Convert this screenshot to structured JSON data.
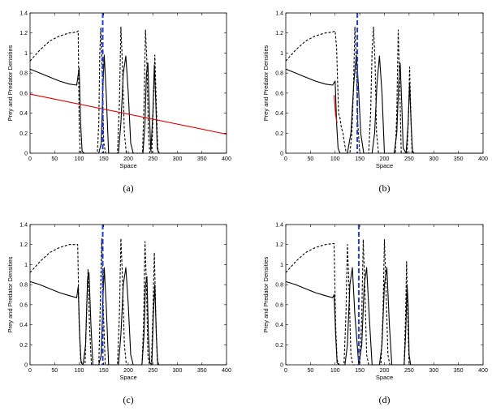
{
  "chart_data": [
    {
      "type": "line",
      "caption": "(a)",
      "xlabel": "Space",
      "ylabel": "Prey and Predator Densities",
      "xlim": [
        0,
        400
      ],
      "ylim": [
        0,
        1.4
      ],
      "xticks": [
        0,
        50,
        100,
        150,
        200,
        250,
        300,
        350,
        400
      ],
      "yticks": [
        0,
        0.2,
        0.4,
        0.6,
        0.8,
        1,
        1.2,
        1.4
      ],
      "grid": false,
      "marker_x": 148,
      "series": [
        {
          "style": "solid",
          "color": "#000000",
          "x": [
            0,
            20,
            40,
            60,
            80,
            95,
            100,
            103,
            106,
            110,
            140,
            145,
            148,
            151,
            155,
            160,
            180,
            185,
            190,
            195,
            200,
            205,
            210,
            230,
            234,
            237,
            240,
            243,
            246,
            250,
            253,
            256,
            259,
            262,
            266,
            400
          ],
          "y": [
            0.84,
            0.8,
            0.76,
            0.72,
            0.69,
            0.68,
            0.85,
            0.3,
            0.02,
            0,
            0,
            0.1,
            0.6,
            0.98,
            0.6,
            0,
            0,
            0.3,
            0.8,
            0.97,
            0.6,
            0.1,
            0,
            0,
            0.3,
            0.8,
            0.9,
            0.4,
            0.02,
            0.4,
            0.88,
            0.5,
            0.05,
            0,
            0,
            0
          ]
        },
        {
          "style": "dashed",
          "color": "#000000",
          "x": [
            0,
            20,
            40,
            60,
            80,
            95,
            98,
            100,
            102,
            105,
            137,
            140,
            142,
            144,
            147,
            150,
            154,
            157,
            178,
            182,
            185,
            188,
            192,
            196,
            229,
            232,
            235,
            238,
            241,
            244,
            248,
            251,
            254,
            257,
            260,
            263,
            400
          ],
          "y": [
            0.92,
            1.03,
            1.12,
            1.17,
            1.2,
            1.21,
            1.22,
            0.3,
            0.02,
            0,
            0,
            0.3,
            1,
            1.25,
            0.8,
            0.1,
            0,
            0,
            0,
            0.5,
            1.26,
            0.9,
            0.2,
            0,
            0,
            0.5,
            1.23,
            0.9,
            0.2,
            0,
            0,
            0.5,
            0.98,
            0.5,
            0.05,
            0,
            0
          ]
        },
        {
          "style": "solid",
          "color": "#e00000",
          "x": [
            0,
            400
          ],
          "y": [
            0.59,
            0.19
          ]
        }
      ]
    },
    {
      "type": "line",
      "caption": "(b)",
      "xlabel": "Space",
      "ylabel": "Prey and Predator Densities",
      "xlim": [
        0,
        400
      ],
      "ylim": [
        0,
        1.4
      ],
      "xticks": [
        0,
        50,
        100,
        150,
        200,
        250,
        300,
        350,
        400
      ],
      "yticks": [
        0,
        0.2,
        0.4,
        0.6,
        0.8,
        1,
        1.2,
        1.4
      ],
      "grid": false,
      "marker_x": 145,
      "series": [
        {
          "style": "solid",
          "color": "#000000",
          "x": [
            0,
            20,
            40,
            60,
            80,
            95,
            100,
            103,
            106,
            110,
            125,
            132,
            138,
            143,
            147,
            152,
            158,
            165,
            175,
            180,
            185,
            190,
            195,
            200,
            220,
            225,
            229,
            232,
            235,
            238,
            244,
            248,
            251,
            254,
            257,
            260,
            400
          ],
          "y": [
            0.84,
            0.8,
            0.76,
            0.72,
            0.69,
            0.68,
            0.72,
            0.3,
            0.05,
            0,
            0,
            0.2,
            0.7,
            0.98,
            0.7,
            0.2,
            0,
            0,
            0,
            0.2,
            0.7,
            0.97,
            0.6,
            0,
            0,
            0.2,
            0.7,
            0.9,
            0.5,
            0.05,
            0,
            0.3,
            0.7,
            0.3,
            0.02,
            0,
            0
          ]
        },
        {
          "style": "dashed",
          "color": "#000000",
          "x": [
            0,
            20,
            40,
            60,
            80,
            95,
            100,
            103,
            107,
            110,
            113,
            116,
            119,
            122,
            125,
            130,
            134,
            137,
            140,
            143,
            146,
            150,
            155,
            168,
            172,
            175,
            178,
            181,
            184,
            188,
            222,
            225,
            228,
            231,
            234,
            246,
            249,
            251,
            253,
            256,
            400
          ],
          "y": [
            0.92,
            1.03,
            1.12,
            1.17,
            1.2,
            1.21,
            1.22,
            1.05,
            0.4,
            0.35,
            0.25,
            0.2,
            0.1,
            0.02,
            0,
            0,
            0.2,
            0.6,
            1.26,
            0.9,
            0.3,
            0,
            0,
            0,
            0.4,
            1.02,
            1.26,
            0.9,
            0.2,
            0,
            0,
            0.4,
            1.23,
            0.7,
            0,
            0,
            0.4,
            0.86,
            0.5,
            0,
            0
          ]
        },
        {
          "style": "solid",
          "color": "#e00000",
          "x": [
            98,
            101,
            104
          ],
          "y": [
            0.58,
            0.38,
            0.3
          ]
        }
      ]
    },
    {
      "type": "line",
      "caption": "(c)",
      "xlabel": "Space",
      "ylabel": "Prey and Predator Densities",
      "xlim": [
        0,
        400
      ],
      "ylim": [
        0,
        1.4
      ],
      "xticks": [
        0,
        50,
        100,
        150,
        200,
        250,
        300,
        350,
        400
      ],
      "yticks": [
        0,
        0.2,
        0.4,
        0.6,
        0.8,
        1,
        1.2,
        1.4
      ],
      "grid": false,
      "marker_x": 148,
      "series": [
        {
          "style": "solid",
          "color": "#000000",
          "x": [
            0,
            20,
            40,
            60,
            80,
            95,
            98,
            101,
            104,
            108,
            113,
            117,
            120,
            124,
            128,
            140,
            145,
            148,
            151,
            155,
            160,
            180,
            185,
            190,
            195,
            200,
            205,
            210,
            228,
            232,
            235,
            238,
            241,
            244,
            248,
            251,
            254,
            257,
            260,
            400
          ],
          "y": [
            0.83,
            0.8,
            0.76,
            0.72,
            0.69,
            0.67,
            0.78,
            0.3,
            0.02,
            0,
            0.2,
            0.85,
            0.92,
            0.4,
            0,
            0,
            0.1,
            0.6,
            0.97,
            0.6,
            0,
            0,
            0.3,
            0.8,
            0.97,
            0.6,
            0.1,
            0,
            0,
            0.3,
            0.8,
            0.88,
            0.3,
            0.02,
            0,
            0.5,
            0.8,
            0.3,
            0,
            0
          ]
        },
        {
          "style": "dashed",
          "color": "#000000",
          "x": [
            0,
            20,
            40,
            60,
            80,
            94,
            97,
            100,
            103,
            107,
            112,
            115,
            118,
            121,
            125,
            140,
            143,
            146,
            149,
            153,
            157,
            178,
            182,
            185,
            188,
            192,
            196,
            228,
            231,
            234,
            237,
            240,
            243,
            247,
            250,
            253,
            256,
            259,
            262,
            400
          ],
          "y": [
            0.92,
            1.03,
            1.12,
            1.17,
            1.2,
            1.2,
            1.2,
            0.4,
            0.05,
            0,
            0,
            0.5,
            0.95,
            0.4,
            0,
            0,
            0.6,
            1.26,
            0.6,
            0,
            0,
            0,
            0.5,
            1.26,
            0.9,
            0.2,
            0,
            0,
            0.4,
            1.23,
            0.8,
            0.1,
            0,
            0,
            0.5,
            1.12,
            0.5,
            0.05,
            0,
            0
          ]
        }
      ]
    },
    {
      "type": "line",
      "caption": "(d)",
      "xlabel": "Space",
      "ylabel": "Prey and Predator Densities",
      "xlim": [
        0,
        400
      ],
      "ylim": [
        0,
        1.4
      ],
      "xticks": [
        0,
        50,
        100,
        150,
        200,
        250,
        300,
        350,
        400
      ],
      "yticks": [
        0,
        0.2,
        0.4,
        0.6,
        0.8,
        1,
        1.2,
        1.4
      ],
      "grid": false,
      "marker_x": 148,
      "series": [
        {
          "style": "solid",
          "color": "#000000",
          "x": [
            0,
            20,
            40,
            60,
            80,
            95,
            98,
            101,
            104,
            108,
            120,
            125,
            130,
            135,
            140,
            148,
            154,
            159,
            164,
            169,
            175,
            190,
            195,
            200,
            205,
            210,
            215,
            240,
            243,
            246,
            248,
            250,
            253,
            400
          ],
          "y": [
            0.83,
            0.8,
            0.76,
            0.72,
            0.69,
            0.67,
            0.7,
            0.3,
            0.02,
            0,
            0,
            0.2,
            0.8,
            0.97,
            0.5,
            0,
            0.2,
            0.8,
            0.97,
            0.5,
            0,
            0,
            0.2,
            0.8,
            0.97,
            0.4,
            0,
            0,
            0.3,
            0.8,
            0.6,
            0.1,
            0,
            0
          ]
        },
        {
          "style": "dashed",
          "color": "#000000",
          "x": [
            0,
            20,
            40,
            60,
            80,
            95,
            98,
            101,
            104,
            108,
            118,
            122,
            125,
            128,
            132,
            136,
            150,
            154,
            157,
            160,
            164,
            168,
            193,
            197,
            200,
            203,
            207,
            211,
            240,
            243,
            245,
            247,
            250,
            400
          ],
          "y": [
            0.92,
            1.03,
            1.12,
            1.17,
            1.2,
            1.21,
            1.21,
            0.4,
            0.05,
            0,
            0,
            0.5,
            1.2,
            0.8,
            0.1,
            0,
            0,
            0.5,
            1.25,
            0.8,
            0.1,
            0,
            0,
            0.5,
            1.25,
            0.8,
            0.1,
            0,
            0,
            0.5,
            1.03,
            0.5,
            0,
            0
          ]
        }
      ]
    }
  ]
}
